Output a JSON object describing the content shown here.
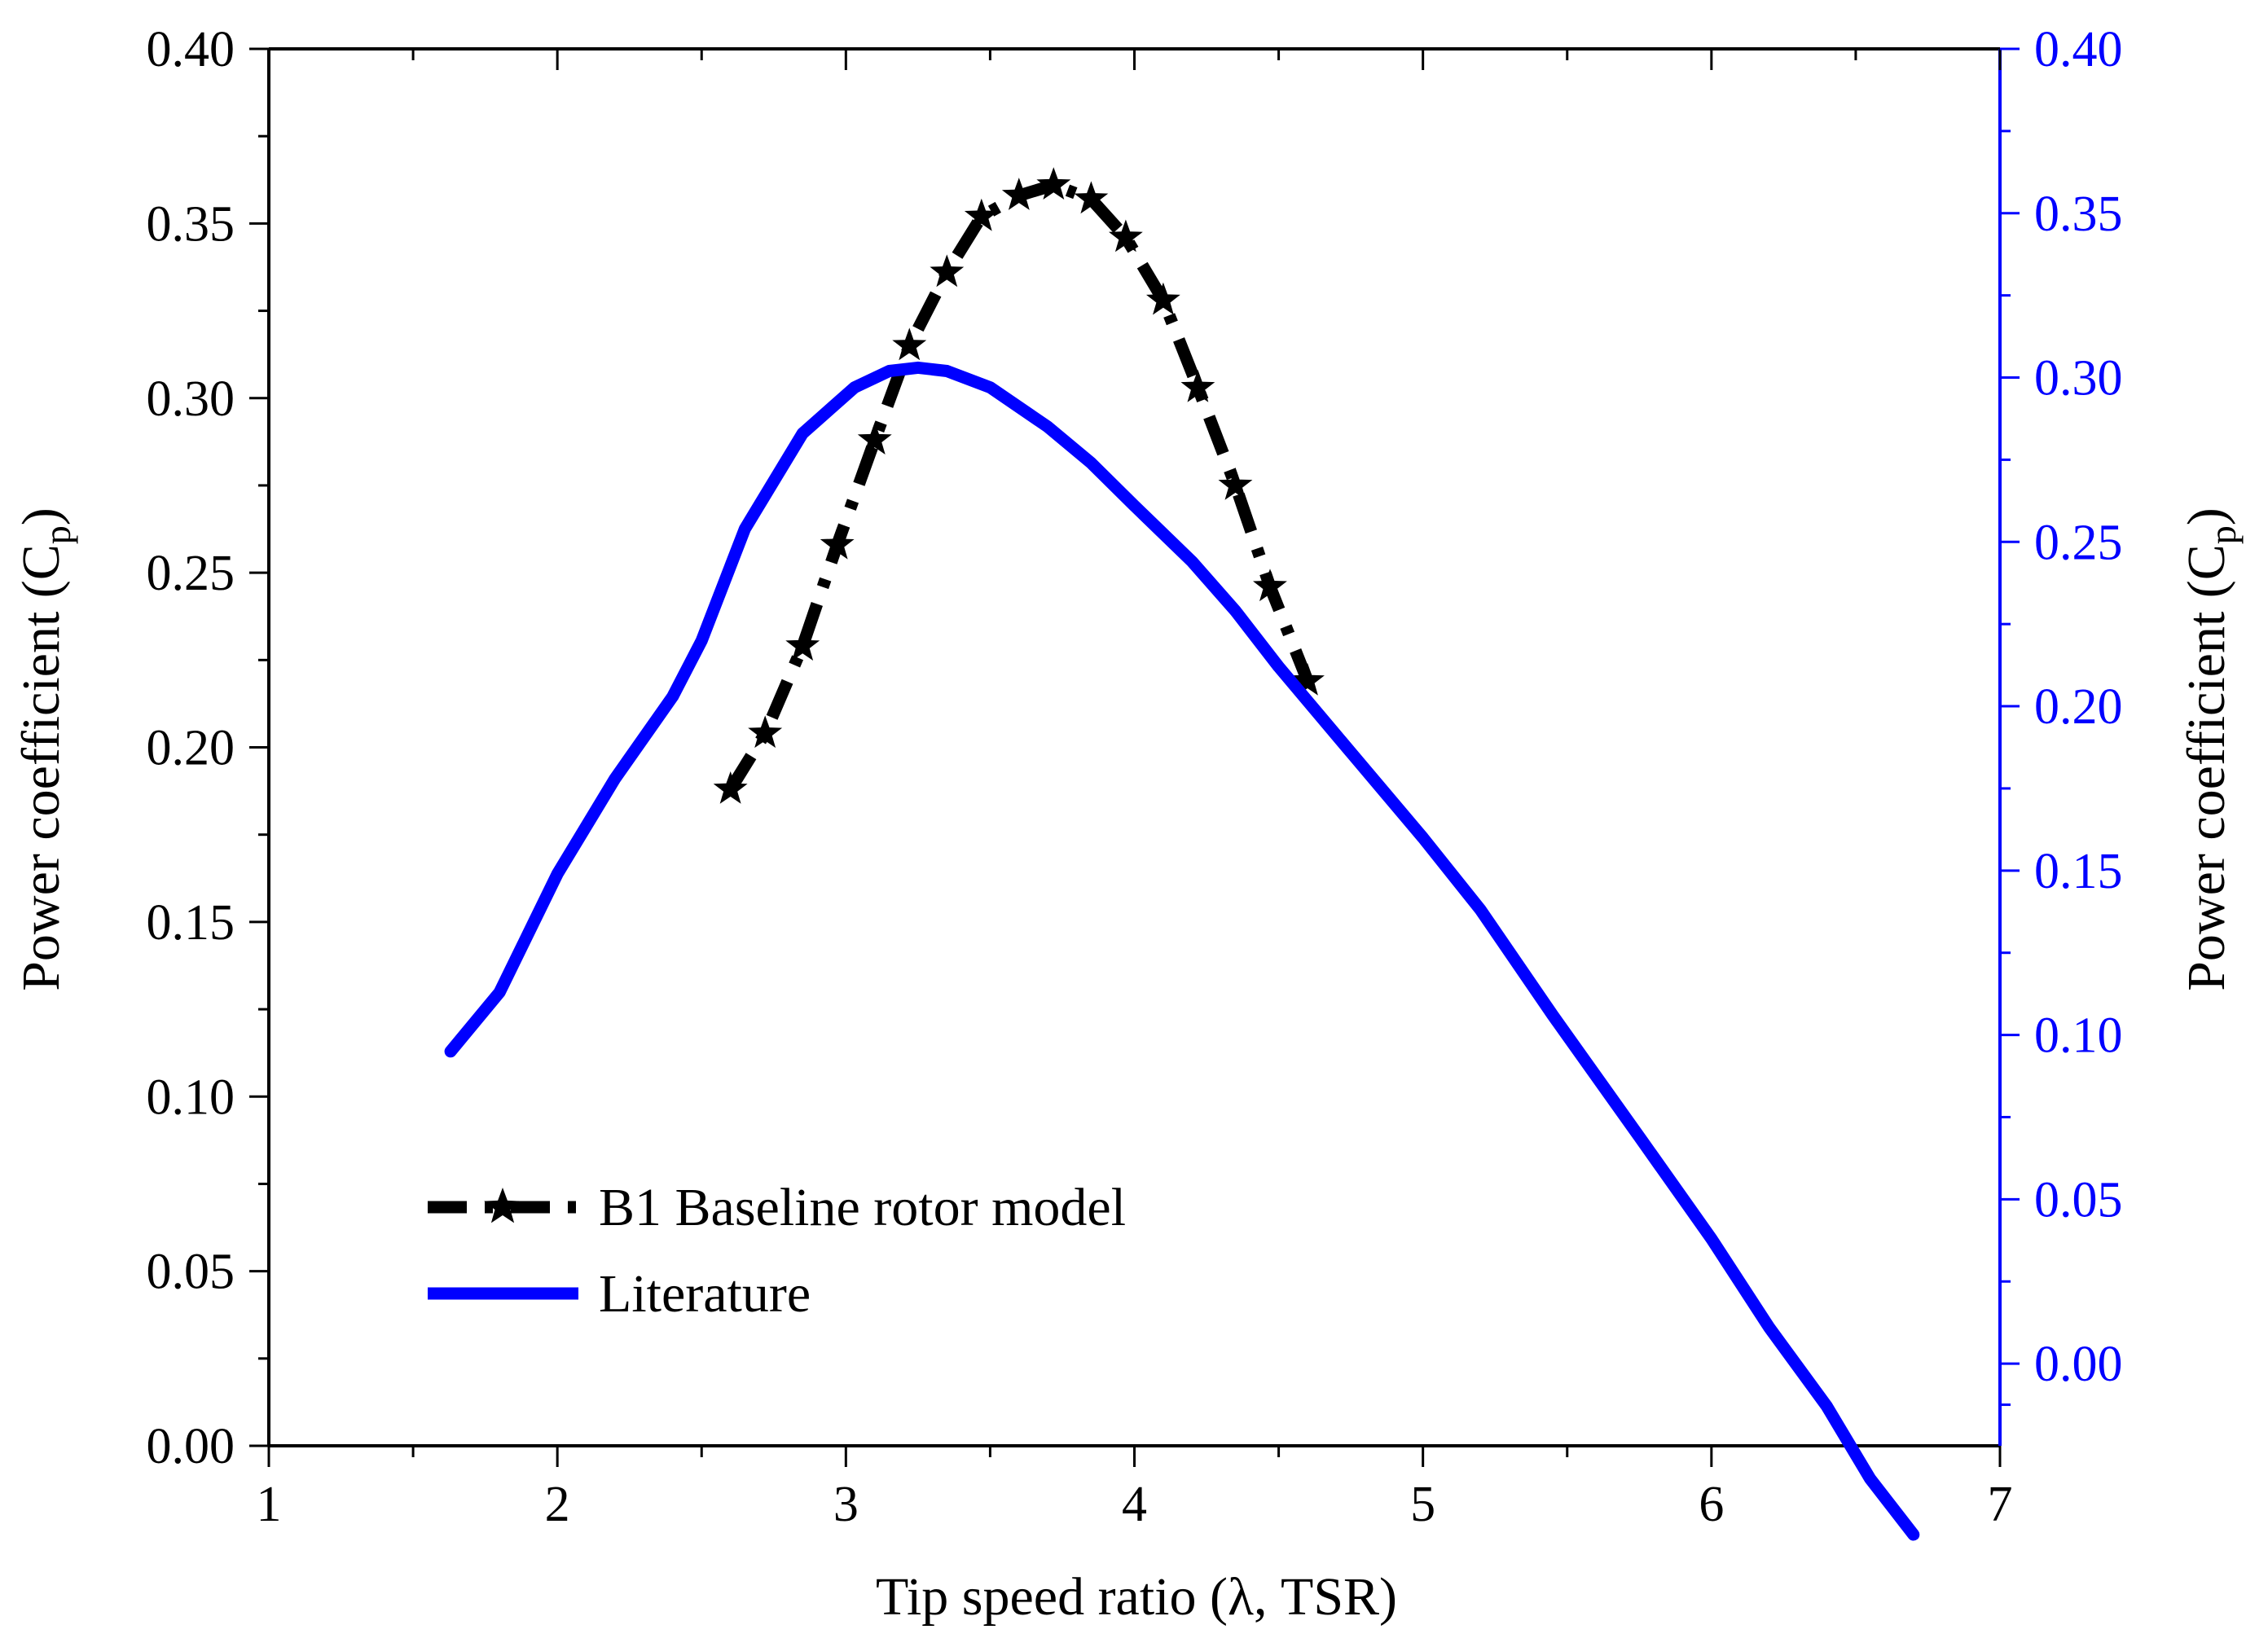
{
  "chart_data": {
    "type": "line",
    "xlabel": "Tip speed ratio (λ, TSR)",
    "ylabel_left": {
      "main": "Power coefficient (C",
      "sub": "p",
      "close": ")"
    },
    "ylabel_right": {
      "main": "Power coefficient (C",
      "sub": "p",
      "close": ")"
    },
    "xlim": [
      1,
      7
    ],
    "ylim_left": [
      0,
      0.4
    ],
    "ylim_right": [
      -0.025,
      0.4
    ],
    "x_ticks": [
      "1",
      "2",
      "3",
      "4",
      "5",
      "6",
      "7"
    ],
    "y_ticks_left": [
      "0.00",
      "0.05",
      "0.10",
      "0.15",
      "0.20",
      "0.25",
      "0.30",
      "0.35",
      "0.40"
    ],
    "y_ticks_right": [
      "0.00",
      "0.05",
      "0.10",
      "0.15",
      "0.20",
      "0.25",
      "0.30",
      "0.35",
      "0.40"
    ],
    "legend_position": "bottom-left",
    "colors": {
      "series1": "#000000",
      "series2": "#0000ff",
      "right_axis": "#0000ff"
    },
    "series": [
      {
        "name": "B1 Baseline rotor model",
        "axis": "left",
        "style": "dash-dot-star",
        "color": "#000000",
        "x": [
          2.6,
          2.72,
          2.85,
          2.97,
          3.1,
          3.22,
          3.35,
          3.47,
          3.6,
          3.72,
          3.85,
          3.97,
          4.1,
          4.22,
          4.35,
          4.47,
          4.6
        ],
        "y": [
          0.188,
          0.204,
          0.229,
          0.258,
          0.288,
          0.315,
          0.336,
          0.352,
          0.358,
          0.361,
          0.357,
          0.346,
          0.328,
          0.303,
          0.275,
          0.246,
          0.219
        ]
      },
      {
        "name": "Literature",
        "axis": "right",
        "style": "solid",
        "color": "#0000ff",
        "x": [
          1.63,
          1.8,
          2.0,
          2.2,
          2.4,
          2.5,
          2.65,
          2.85,
          3.03,
          3.15,
          3.25,
          3.35,
          3.5,
          3.7,
          3.85,
          4.0,
          4.2,
          4.35,
          4.5,
          4.75,
          5.0,
          5.2,
          5.45,
          5.75,
          6.0,
          6.2,
          6.4,
          6.55,
          6.7
        ],
        "y": [
          0.095,
          0.113,
          0.149,
          0.178,
          0.203,
          0.22,
          0.254,
          0.283,
          0.297,
          0.302,
          0.303,
          0.302,
          0.297,
          0.285,
          0.274,
          0.261,
          0.244,
          0.229,
          0.212,
          0.186,
          0.16,
          0.138,
          0.106,
          0.069,
          0.038,
          0.011,
          -0.013,
          -0.035,
          -0.052
        ]
      }
    ]
  }
}
